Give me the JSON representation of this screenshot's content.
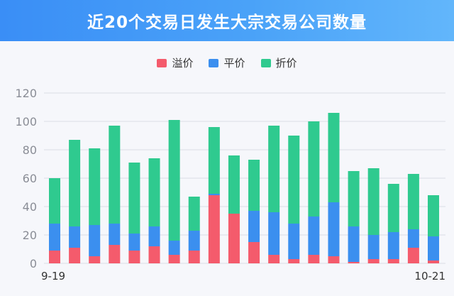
{
  "colors": {
    "premium": "#f45b6c",
    "par": "#3b8fef",
    "discount": "#2fca8f",
    "grid": "#d9dce4",
    "tick": "#8a8d96"
  },
  "chart_data": {
    "type": "bar",
    "stacked": true,
    "title": "近20个交易日发生大宗交易公司数量",
    "x_labels_shown": [
      "9-19",
      "10-21"
    ],
    "ylim": [
      0,
      120
    ],
    "yticks": [
      0,
      20,
      40,
      60,
      80,
      100,
      120
    ],
    "grid": true,
    "legend_position": "top-center",
    "series": [
      {
        "name": "溢价",
        "color": "#f45b6c",
        "values": [
          9,
          11,
          5,
          13,
          9,
          12,
          6,
          9,
          48,
          35,
          15,
          6,
          3,
          6,
          5,
          1,
          3,
          3,
          11,
          2
        ]
      },
      {
        "name": "平价",
        "color": "#3b8fef",
        "values": [
          19,
          15,
          22,
          15,
          12,
          14,
          10,
          14,
          1,
          0,
          22,
          30,
          25,
          27,
          38,
          25,
          17,
          19,
          13,
          17
        ]
      },
      {
        "name": "折价",
        "color": "#2fca8f",
        "values": [
          32,
          61,
          54,
          69,
          50,
          48,
          85,
          24,
          47,
          41,
          36,
          61,
          62,
          67,
          63,
          39,
          47,
          34,
          39,
          29
        ]
      }
    ]
  }
}
